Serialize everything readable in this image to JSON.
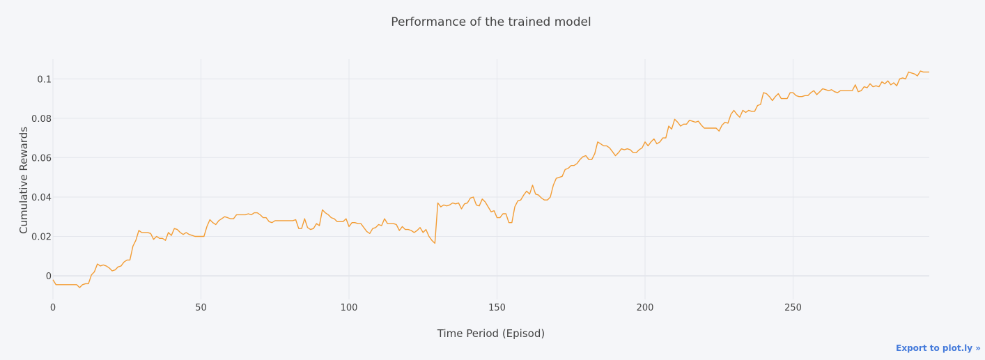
{
  "export_label": "Export to plot.ly »",
  "colors": {
    "line": "#f39c33",
    "background": "#f5f6f9"
  },
  "chart_data": {
    "type": "line",
    "title": "Performance of the trained model",
    "xlabel": "Time Period (Episod)",
    "ylabel": "Cumulative Rewards",
    "xlim": [
      0,
      296
    ],
    "ylim": [
      -0.012,
      0.11
    ],
    "xticks": [
      0,
      50,
      100,
      150,
      200,
      250
    ],
    "xtick_labels": [
      "0",
      "50",
      "100",
      "150",
      "200",
      "250"
    ],
    "yticks": [
      0,
      0.02,
      0.04,
      0.06,
      0.08,
      0.1
    ],
    "ytick_labels": [
      "0",
      "0.02",
      "0.04",
      "0.06",
      "0.08",
      "0.1"
    ],
    "grid": true,
    "legend": false,
    "points": [
      [
        0,
        -0.002
      ],
      [
        1,
        -0.0045
      ],
      [
        5,
        -0.0045
      ],
      [
        8,
        -0.0045
      ],
      [
        9,
        -0.006
      ],
      [
        10,
        -0.0045
      ],
      [
        11,
        -0.004
      ],
      [
        12,
        -0.004
      ],
      [
        13,
        0.0005
      ],
      [
        14,
        0.002
      ],
      [
        15,
        0.006
      ],
      [
        16,
        0.005
      ],
      [
        17,
        0.0055
      ],
      [
        18,
        0.005
      ],
      [
        19,
        0.004
      ],
      [
        20,
        0.0025
      ],
      [
        21,
        0.003
      ],
      [
        22,
        0.0045
      ],
      [
        23,
        0.005
      ],
      [
        24,
        0.007
      ],
      [
        25,
        0.008
      ],
      [
        26,
        0.008
      ],
      [
        27,
        0.015
      ],
      [
        28,
        0.018
      ],
      [
        29,
        0.023
      ],
      [
        30,
        0.022
      ],
      [
        31,
        0.022
      ],
      [
        32,
        0.022
      ],
      [
        33,
        0.0215
      ],
      [
        34,
        0.0185
      ],
      [
        35,
        0.02
      ],
      [
        36,
        0.019
      ],
      [
        37,
        0.019
      ],
      [
        38,
        0.018
      ],
      [
        39,
        0.022
      ],
      [
        40,
        0.0205
      ],
      [
        41,
        0.024
      ],
      [
        42,
        0.0235
      ],
      [
        43,
        0.022
      ],
      [
        44,
        0.021
      ],
      [
        45,
        0.022
      ],
      [
        46,
        0.021
      ],
      [
        47,
        0.0205
      ],
      [
        48,
        0.02
      ],
      [
        50,
        0.02
      ],
      [
        51,
        0.02
      ],
      [
        52,
        0.025
      ],
      [
        53,
        0.0285
      ],
      [
        54,
        0.027
      ],
      [
        55,
        0.026
      ],
      [
        56,
        0.028
      ],
      [
        57,
        0.029
      ],
      [
        58,
        0.03
      ],
      [
        59,
        0.0295
      ],
      [
        60,
        0.029
      ],
      [
        61,
        0.029
      ],
      [
        62,
        0.031
      ],
      [
        63,
        0.031
      ],
      [
        64,
        0.031
      ],
      [
        65,
        0.031
      ],
      [
        66,
        0.0315
      ],
      [
        67,
        0.031
      ],
      [
        68,
        0.032
      ],
      [
        69,
        0.032
      ],
      [
        70,
        0.031
      ],
      [
        71,
        0.0295
      ],
      [
        72,
        0.0295
      ],
      [
        73,
        0.0275
      ],
      [
        74,
        0.027
      ],
      [
        75,
        0.028
      ],
      [
        76,
        0.028
      ],
      [
        80,
        0.028
      ],
      [
        81,
        0.028
      ],
      [
        82,
        0.0285
      ],
      [
        83,
        0.024
      ],
      [
        84,
        0.024
      ],
      [
        85,
        0.029
      ],
      [
        86,
        0.0245
      ],
      [
        87,
        0.0235
      ],
      [
        88,
        0.024
      ],
      [
        89,
        0.0265
      ],
      [
        90,
        0.0255
      ],
      [
        91,
        0.0335
      ],
      [
        92,
        0.032
      ],
      [
        93,
        0.031
      ],
      [
        94,
        0.0295
      ],
      [
        95,
        0.029
      ],
      [
        96,
        0.0275
      ],
      [
        97,
        0.0275
      ],
      [
        98,
        0.0275
      ],
      [
        99,
        0.029
      ],
      [
        100,
        0.025
      ],
      [
        101,
        0.027
      ],
      [
        102,
        0.027
      ],
      [
        103,
        0.0265
      ],
      [
        104,
        0.0265
      ],
      [
        105,
        0.0245
      ],
      [
        106,
        0.0225
      ],
      [
        107,
        0.0215
      ],
      [
        108,
        0.024
      ],
      [
        109,
        0.0245
      ],
      [
        110,
        0.026
      ],
      [
        111,
        0.0255
      ],
      [
        112,
        0.029
      ],
      [
        113,
        0.0265
      ],
      [
        114,
        0.0265
      ],
      [
        115,
        0.0265
      ],
      [
        116,
        0.026
      ],
      [
        117,
        0.023
      ],
      [
        118,
        0.025
      ],
      [
        119,
        0.0235
      ],
      [
        120,
        0.0235
      ],
      [
        121,
        0.023
      ],
      [
        122,
        0.022
      ],
      [
        123,
        0.023
      ],
      [
        124,
        0.0245
      ],
      [
        125,
        0.022
      ],
      [
        126,
        0.0235
      ],
      [
        127,
        0.02
      ],
      [
        128,
        0.018
      ],
      [
        129,
        0.0165
      ],
      [
        130,
        0.037
      ],
      [
        131,
        0.035
      ],
      [
        132,
        0.036
      ],
      [
        133,
        0.0355
      ],
      [
        134,
        0.036
      ],
      [
        135,
        0.037
      ],
      [
        136,
        0.0365
      ],
      [
        137,
        0.037
      ],
      [
        138,
        0.034
      ],
      [
        139,
        0.0365
      ],
      [
        140,
        0.037
      ],
      [
        141,
        0.0395
      ],
      [
        142,
        0.04
      ],
      [
        143,
        0.036
      ],
      [
        144,
        0.0355
      ],
      [
        145,
        0.039
      ],
      [
        146,
        0.0375
      ],
      [
        147,
        0.035
      ],
      [
        148,
        0.0325
      ],
      [
        149,
        0.033
      ],
      [
        150,
        0.0295
      ],
      [
        151,
        0.0295
      ],
      [
        152,
        0.0315
      ],
      [
        153,
        0.0315
      ],
      [
        154,
        0.027
      ],
      [
        155,
        0.027
      ],
      [
        156,
        0.035
      ],
      [
        157,
        0.038
      ],
      [
        158,
        0.0385
      ],
      [
        159,
        0.041
      ],
      [
        160,
        0.043
      ],
      [
        161,
        0.0415
      ],
      [
        162,
        0.046
      ],
      [
        163,
        0.0415
      ],
      [
        164,
        0.041
      ],
      [
        165,
        0.0395
      ],
      [
        166,
        0.0385
      ],
      [
        167,
        0.0385
      ],
      [
        168,
        0.04
      ],
      [
        169,
        0.046
      ],
      [
        170,
        0.0495
      ],
      [
        171,
        0.05
      ],
      [
        172,
        0.0505
      ],
      [
        173,
        0.054
      ],
      [
        174,
        0.0545
      ],
      [
        175,
        0.056
      ],
      [
        176,
        0.056
      ],
      [
        177,
        0.057
      ],
      [
        178,
        0.059
      ],
      [
        179,
        0.0605
      ],
      [
        180,
        0.061
      ],
      [
        181,
        0.059
      ],
      [
        182,
        0.059
      ],
      [
        183,
        0.062
      ],
      [
        184,
        0.068
      ],
      [
        185,
        0.067
      ],
      [
        186,
        0.066
      ],
      [
        187,
        0.066
      ],
      [
        188,
        0.065
      ],
      [
        189,
        0.063
      ],
      [
        190,
        0.061
      ],
      [
        191,
        0.0625
      ],
      [
        192,
        0.0645
      ],
      [
        193,
        0.064
      ],
      [
        194,
        0.0645
      ],
      [
        195,
        0.064
      ],
      [
        196,
        0.0625
      ],
      [
        197,
        0.0625
      ],
      [
        198,
        0.064
      ],
      [
        199,
        0.065
      ],
      [
        200,
        0.068
      ],
      [
        201,
        0.066
      ],
      [
        202,
        0.068
      ],
      [
        203,
        0.0695
      ],
      [
        204,
        0.067
      ],
      [
        205,
        0.068
      ],
      [
        206,
        0.07
      ],
      [
        207,
        0.07
      ],
      [
        208,
        0.076
      ],
      [
        209,
        0.0745
      ],
      [
        210,
        0.0795
      ],
      [
        211,
        0.078
      ],
      [
        212,
        0.076
      ],
      [
        213,
        0.077
      ],
      [
        214,
        0.077
      ],
      [
        215,
        0.079
      ],
      [
        216,
        0.0785
      ],
      [
        217,
        0.078
      ],
      [
        218,
        0.0785
      ],
      [
        219,
        0.0765
      ],
      [
        220,
        0.075
      ],
      [
        221,
        0.075
      ],
      [
        224,
        0.075
      ],
      [
        225,
        0.0735
      ],
      [
        226,
        0.0765
      ],
      [
        227,
        0.078
      ],
      [
        228,
        0.0775
      ],
      [
        229,
        0.082
      ],
      [
        230,
        0.084
      ],
      [
        231,
        0.082
      ],
      [
        232,
        0.0805
      ],
      [
        233,
        0.084
      ],
      [
        234,
        0.083
      ],
      [
        235,
        0.084
      ],
      [
        236,
        0.0835
      ],
      [
        237,
        0.0835
      ],
      [
        238,
        0.0865
      ],
      [
        239,
        0.087
      ],
      [
        240,
        0.093
      ],
      [
        241,
        0.0925
      ],
      [
        242,
        0.091
      ],
      [
        243,
        0.089
      ],
      [
        244,
        0.091
      ],
      [
        245,
        0.0925
      ],
      [
        246,
        0.09
      ],
      [
        247,
        0.09
      ],
      [
        248,
        0.09
      ],
      [
        249,
        0.093
      ],
      [
        250,
        0.093
      ],
      [
        251,
        0.0915
      ],
      [
        252,
        0.091
      ],
      [
        253,
        0.091
      ],
      [
        254,
        0.0915
      ],
      [
        255,
        0.0915
      ],
      [
        256,
        0.093
      ],
      [
        257,
        0.094
      ],
      [
        258,
        0.092
      ],
      [
        259,
        0.0935
      ],
      [
        260,
        0.095
      ],
      [
        261,
        0.0945
      ],
      [
        262,
        0.094
      ],
      [
        263,
        0.0945
      ],
      [
        264,
        0.0935
      ],
      [
        265,
        0.093
      ],
      [
        266,
        0.094
      ],
      [
        267,
        0.094
      ],
      [
        270,
        0.094
      ],
      [
        271,
        0.097
      ],
      [
        272,
        0.0935
      ],
      [
        273,
        0.094
      ],
      [
        274,
        0.096
      ],
      [
        275,
        0.0955
      ],
      [
        276,
        0.0975
      ],
      [
        277,
        0.096
      ],
      [
        278,
        0.0965
      ],
      [
        279,
        0.096
      ],
      [
        280,
        0.0985
      ],
      [
        281,
        0.0975
      ],
      [
        282,
        0.099
      ],
      [
        283,
        0.097
      ],
      [
        284,
        0.098
      ],
      [
        285,
        0.0965
      ],
      [
        286,
        0.1
      ],
      [
        287,
        0.1005
      ],
      [
        288,
        0.1
      ],
      [
        289,
        0.1035
      ],
      [
        290,
        0.103
      ],
      [
        291,
        0.1025
      ],
      [
        292,
        0.1015
      ],
      [
        293,
        0.104
      ],
      [
        294,
        0.1035
      ],
      [
        295,
        0.1035
      ],
      [
        296,
        0.1035
      ],
      [
        297,
        0.1015
      ],
      [
        298,
        0.1035
      ]
    ]
  }
}
